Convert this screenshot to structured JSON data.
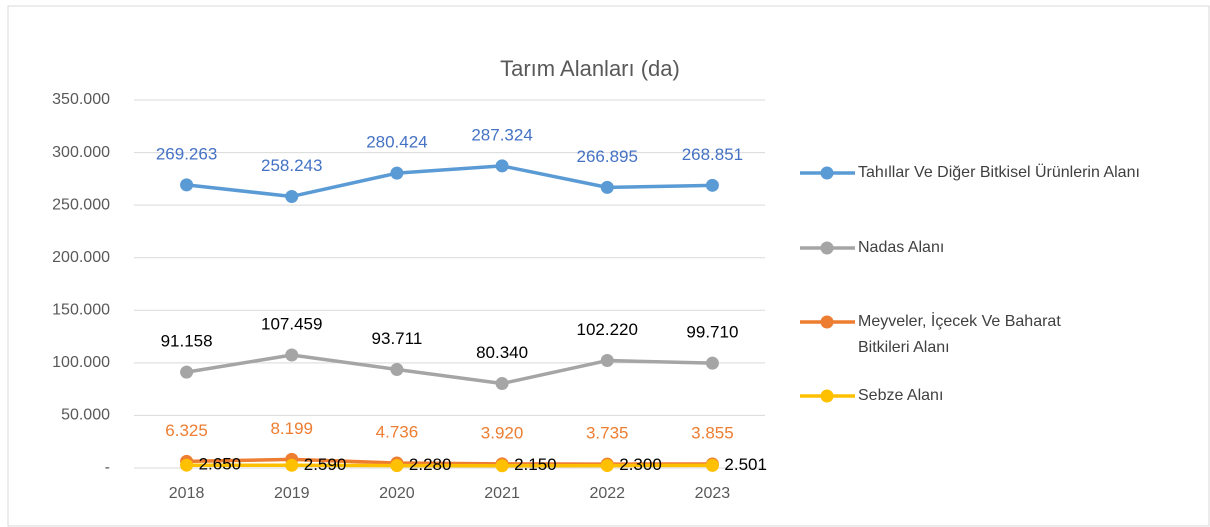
{
  "chart_data": {
    "type": "line",
    "title": "Tarım Alanları (da)",
    "categories": [
      "2018",
      "2019",
      "2020",
      "2021",
      "2022",
      "2023"
    ],
    "ylim": [
      0,
      350000
    ],
    "yticks": [
      {
        "value": 0,
        "label": "-"
      },
      {
        "value": 50000,
        "label": "50.000"
      },
      {
        "value": 100000,
        "label": "100.000"
      },
      {
        "value": 150000,
        "label": "150.000"
      },
      {
        "value": 200000,
        "label": "200.000"
      },
      {
        "value": 250000,
        "label": "250.000"
      },
      {
        "value": 300000,
        "label": "300.000"
      },
      {
        "value": 350000,
        "label": "350.000"
      }
    ],
    "grid": true,
    "legend": "right",
    "series": [
      {
        "name": "Tahıllar Ve Diğer Bitkisel Ürünlerin Alanı",
        "color": "#5b9bd5",
        "label_color": "#4472c4",
        "values": [
          269263,
          258243,
          280424,
          287324,
          266895,
          268851
        ],
        "value_labels": [
          "269.263",
          "258.243",
          "280.424",
          "287.324",
          "266.895",
          "268.851"
        ]
      },
      {
        "name": "Nadas Alanı",
        "color": "#a5a5a5",
        "label_color": "#000000",
        "values": [
          91158,
          107459,
          93711,
          80340,
          102220,
          99710
        ],
        "value_labels": [
          "91.158",
          "107.459",
          "93.711",
          "80.340",
          "102.220",
          "99.710"
        ]
      },
      {
        "name": "Meyveler, İçecek Ve Baharat Bitkileri Alanı",
        "color": "#ed7d31",
        "label_color": "#ed7d31",
        "values": [
          6325,
          8199,
          4736,
          3920,
          3735,
          3855
        ],
        "value_labels": [
          "6.325",
          "8.199",
          "4.736",
          "3.920",
          "3.735",
          "3.855"
        ]
      },
      {
        "name": "Sebze Alanı",
        "color": "#ffc000",
        "label_color": "#000000",
        "values": [
          2650,
          2590,
          2280,
          2150,
          2300,
          2501
        ],
        "value_labels": [
          "2.650",
          "2.590",
          "2.280",
          "2.150",
          "2.300",
          "2.501"
        ]
      }
    ]
  }
}
